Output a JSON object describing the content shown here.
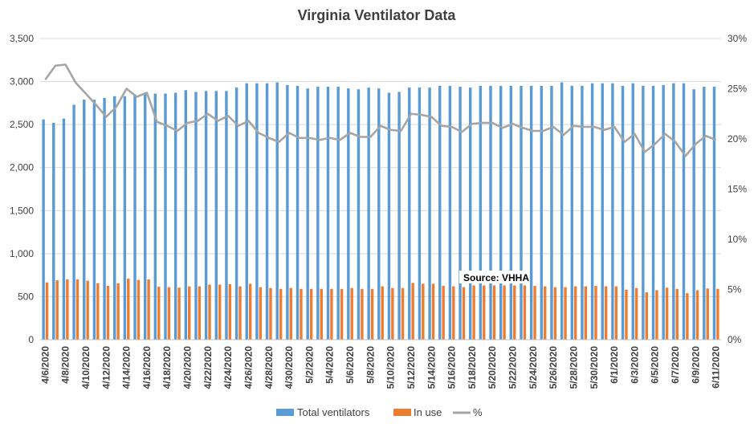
{
  "chart_data": {
    "type": "bar",
    "title": "Virginia Ventilator Data",
    "annotation": "Source: VHHA",
    "x": [
      "4/6/2020",
      "4/7/2020",
      "4/8/2020",
      "4/9/2020",
      "4/10/2020",
      "4/11/2020",
      "4/12/2020",
      "4/13/2020",
      "4/14/2020",
      "4/15/2020",
      "4/16/2020",
      "4/17/2020",
      "4/18/2020",
      "4/19/2020",
      "4/20/2020",
      "4/21/2020",
      "4/22/2020",
      "4/23/2020",
      "4/24/2020",
      "4/25/2020",
      "4/26/2020",
      "4/27/2020",
      "4/28/2020",
      "4/29/2020",
      "4/30/2020",
      "5/1/2020",
      "5/2/2020",
      "5/3/2020",
      "5/4/2020",
      "5/5/2020",
      "5/6/2020",
      "5/7/2020",
      "5/8/2020",
      "5/9/2020",
      "5/10/2020",
      "5/11/2020",
      "5/12/2020",
      "5/13/2020",
      "5/14/2020",
      "5/15/2020",
      "5/16/2020",
      "5/17/2020",
      "5/18/2020",
      "5/19/2020",
      "5/20/2020",
      "5/21/2020",
      "5/22/2020",
      "5/23/2020",
      "5/24/2020",
      "5/25/2020",
      "5/26/2020",
      "5/27/2020",
      "5/28/2020",
      "5/29/2020",
      "5/30/2020",
      "5/31/2020",
      "6/1/2020",
      "6/2/2020",
      "6/3/2020",
      "6/4/2020",
      "6/5/2020",
      "6/6/2020",
      "6/7/2020",
      "6/8/2020",
      "6/9/2020",
      "6/10/2020",
      "6/11/2020"
    ],
    "x_tick_labels": [
      "4/6/2020",
      "4/8/2020",
      "4/10/2020",
      "4/12/2020",
      "4/14/2020",
      "4/16/2020",
      "4/18/2020",
      "4/20/2020",
      "4/22/2020",
      "4/24/2020",
      "4/26/2020",
      "4/28/2020",
      "4/30/2020",
      "5/2/2020",
      "5/4/2020",
      "5/6/2020",
      "5/8/2020",
      "5/10/2020",
      "5/12/2020",
      "5/14/2020",
      "5/16/2020",
      "5/18/2020",
      "5/20/2020",
      "5/22/2020",
      "5/24/2020",
      "5/26/2020",
      "5/28/2020",
      "5/30/2020",
      "6/1/2020",
      "6/3/2020",
      "6/5/2020",
      "6/7/2020",
      "6/9/2020",
      "6/11/2020"
    ],
    "ylim": [
      0,
      3500
    ],
    "y_ticks": [
      "0",
      "500",
      "1,000",
      "1,500",
      "2,000",
      "2,500",
      "3,000",
      "3,500"
    ],
    "y2lim": [
      0,
      30
    ],
    "y2_ticks": [
      "0%",
      "5%",
      "10%",
      "15%",
      "20%",
      "25%",
      "30%"
    ],
    "grid": true,
    "legend_position": "bottom",
    "series": [
      {
        "name": "Total ventilators",
        "type": "bar",
        "axis": "left",
        "color": "#5b9bd5",
        "values": [
          2560,
          2520,
          2570,
          2730,
          2790,
          2790,
          2810,
          2830,
          2830,
          2850,
          2860,
          2860,
          2860,
          2870,
          2900,
          2880,
          2890,
          2890,
          2890,
          2930,
          2980,
          2980,
          2980,
          2990,
          2960,
          2950,
          2920,
          2940,
          2940,
          2940,
          2920,
          2910,
          2930,
          2920,
          2870,
          2880,
          2930,
          2930,
          2930,
          2950,
          2950,
          2940,
          2930,
          2950,
          2950,
          2950,
          2950,
          2950,
          2950,
          2950,
          2950,
          2990,
          2950,
          2950,
          2980,
          2980,
          2980,
          2950,
          2980,
          2950,
          2950,
          2960,
          2980,
          2980,
          2910,
          2940,
          2940
        ]
      },
      {
        "name": "In use",
        "type": "bar",
        "axis": "left",
        "color": "#ed7d31",
        "values": [
          665,
          690,
          700,
          700,
          685,
          655,
          625,
          655,
          710,
          695,
          700,
          615,
          610,
          605,
          620,
          620,
          640,
          640,
          645,
          620,
          650,
          610,
          600,
          590,
          600,
          590,
          590,
          590,
          590,
          590,
          600,
          590,
          590,
          620,
          600,
          600,
          660,
          650,
          650,
          625,
          620,
          610,
          630,
          630,
          630,
          630,
          630,
          630,
          625,
          620,
          610,
          610,
          620,
          620,
          625,
          620,
          620,
          580,
          600,
          550,
          575,
          605,
          590,
          540,
          575,
          595,
          590
        ]
      },
      {
        "name": "%",
        "type": "line",
        "axis": "right",
        "color": "#a5a5a5",
        "values": [
          25.9,
          27.3,
          27.4,
          25.6,
          24.5,
          23.4,
          22.2,
          23.2,
          25.0,
          24.2,
          24.6,
          21.7,
          21.3,
          20.8,
          21.6,
          21.8,
          22.5,
          21.8,
          22.3,
          21.3,
          21.8,
          20.6,
          20.1,
          19.7,
          20.6,
          20.1,
          20.1,
          19.9,
          20.1,
          19.9,
          20.6,
          20.2,
          20.2,
          21.3,
          20.9,
          20.8,
          22.5,
          22.4,
          22.2,
          21.3,
          21.2,
          20.7,
          21.5,
          21.6,
          21.6,
          21.1,
          21.5,
          21.1,
          20.8,
          20.8,
          21.2,
          20.4,
          21.3,
          21.2,
          21.2,
          20.9,
          21.2,
          19.7,
          20.5,
          18.7,
          19.5,
          20.5,
          19.7,
          18.3,
          19.5,
          20.3,
          19.9
        ]
      }
    ]
  }
}
